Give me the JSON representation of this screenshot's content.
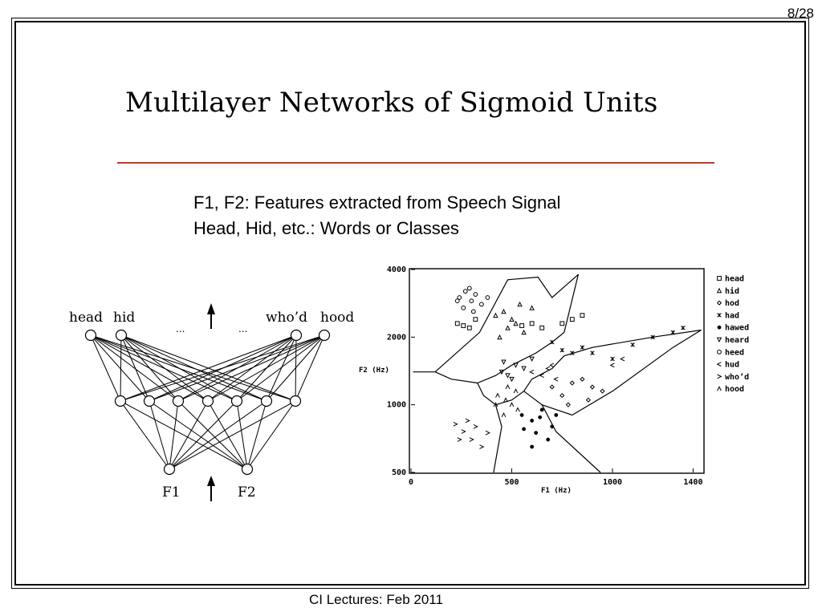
{
  "page": {
    "number": "8/28",
    "footer": "CI Lectures: Feb 2011"
  },
  "slide": {
    "title": "Multilayer Networks of Sigmoid Units",
    "notes": [
      "F1, F2: Features extracted from Speech Signal",
      "Head, Hid, etc.: Words or Classes"
    ],
    "rule_color": "#c23a22"
  },
  "network": {
    "output_labels": [
      "head",
      "hid",
      "who’d",
      "hood"
    ],
    "ellipsis": "...",
    "input_labels": [
      "F1",
      "F2"
    ]
  },
  "chart_data": {
    "type": "scatter",
    "xlabel": "F1 (Hz)",
    "ylabel": "F2 (Hz)",
    "x_ticks": [
      "0",
      "500",
      "1000",
      "1400"
    ],
    "y_ticks": [
      "500",
      "1000",
      "2000",
      "4000"
    ],
    "xlim": [
      0,
      1450
    ],
    "y_scale": "log",
    "ylim": [
      500,
      4000
    ],
    "legend_position": "right",
    "legend": [
      {
        "name": "head",
        "marker": "square"
      },
      {
        "name": "hid",
        "marker": "triangle"
      },
      {
        "name": "hod",
        "marker": "diamond"
      },
      {
        "name": "had",
        "marker": "star"
      },
      {
        "name": "hawed",
        "marker": "dot"
      },
      {
        "name": "heard",
        "marker": "down-triangle"
      },
      {
        "name": "heed",
        "marker": "circle"
      },
      {
        "name": "hud",
        "marker": "left-chevron"
      },
      {
        "name": "who’d",
        "marker": "right-chevron"
      },
      {
        "name": "hood",
        "marker": "caret"
      }
    ],
    "series": [
      {
        "name": "heed",
        "points": [
          [
            240,
            3000
          ],
          [
            270,
            3200
          ],
          [
            300,
            2900
          ],
          [
            320,
            3100
          ],
          [
            260,
            2700
          ],
          [
            350,
            2800
          ],
          [
            380,
            3000
          ],
          [
            290,
            3300
          ],
          [
            310,
            2600
          ],
          [
            230,
            2900
          ]
        ]
      },
      {
        "name": "head",
        "points": [
          [
            230,
            2300
          ],
          [
            260,
            2250
          ],
          [
            290,
            2200
          ],
          [
            320,
            2400
          ],
          [
            550,
            2250
          ],
          [
            600,
            2300
          ],
          [
            650,
            2200
          ],
          [
            750,
            2300
          ],
          [
            800,
            2400
          ],
          [
            850,
            2500
          ]
        ]
      },
      {
        "name": "hid",
        "points": [
          [
            420,
            2500
          ],
          [
            460,
            2600
          ],
          [
            500,
            2400
          ],
          [
            520,
            2300
          ],
          [
            480,
            2200
          ],
          [
            560,
            2100
          ],
          [
            440,
            2000
          ],
          [
            600,
            2700
          ],
          [
            540,
            2800
          ]
        ]
      },
      {
        "name": "had",
        "points": [
          [
            700,
            1900
          ],
          [
            750,
            1750
          ],
          [
            800,
            1700
          ],
          [
            850,
            1800
          ],
          [
            900,
            1700
          ],
          [
            1000,
            1600
          ],
          [
            1100,
            1850
          ],
          [
            1200,
            2000
          ],
          [
            1300,
            2100
          ],
          [
            1350,
            2200
          ]
        ]
      },
      {
        "name": "hawed",
        "points": [
          [
            550,
            900
          ],
          [
            600,
            850
          ],
          [
            650,
            950
          ],
          [
            700,
            800
          ],
          [
            620,
            750
          ],
          [
            680,
            700
          ],
          [
            560,
            780
          ],
          [
            640,
            880
          ],
          [
            720,
            900
          ],
          [
            600,
            650
          ]
        ]
      },
      {
        "name": "heard",
        "points": [
          [
            450,
            1400
          ],
          [
            480,
            1350
          ],
          [
            520,
            1500
          ],
          [
            560,
            1450
          ],
          [
            500,
            1300
          ],
          [
            600,
            1600
          ],
          [
            460,
            1550
          ]
        ]
      },
      {
        "name": "hod",
        "points": [
          [
            700,
            1200
          ],
          [
            750,
            1100
          ],
          [
            800,
            1250
          ],
          [
            850,
            1300
          ],
          [
            900,
            1200
          ],
          [
            950,
            1150
          ],
          [
            780,
            1000
          ],
          [
            880,
            1050
          ]
        ]
      },
      {
        "name": "hud",
        "points": [
          [
            600,
            1400
          ],
          [
            650,
            1350
          ],
          [
            700,
            1500
          ],
          [
            720,
            1300
          ],
          [
            680,
            1450
          ],
          [
            1000,
            1500
          ],
          [
            1050,
            1600
          ]
        ]
      },
      {
        "name": "who’d",
        "points": [
          [
            220,
            820
          ],
          [
            260,
            760
          ],
          [
            300,
            700
          ],
          [
            280,
            850
          ],
          [
            320,
            800
          ],
          [
            240,
            700
          ],
          [
            350,
            650
          ],
          [
            380,
            750
          ]
        ]
      },
      {
        "name": "hood",
        "points": [
          [
            430,
            1100
          ],
          [
            470,
            1050
          ],
          [
            500,
            1000
          ],
          [
            530,
            950
          ],
          [
            460,
            900
          ],
          [
            520,
            1150
          ],
          [
            480,
            1200
          ],
          [
            420,
            1000
          ]
        ]
      }
    ]
  }
}
